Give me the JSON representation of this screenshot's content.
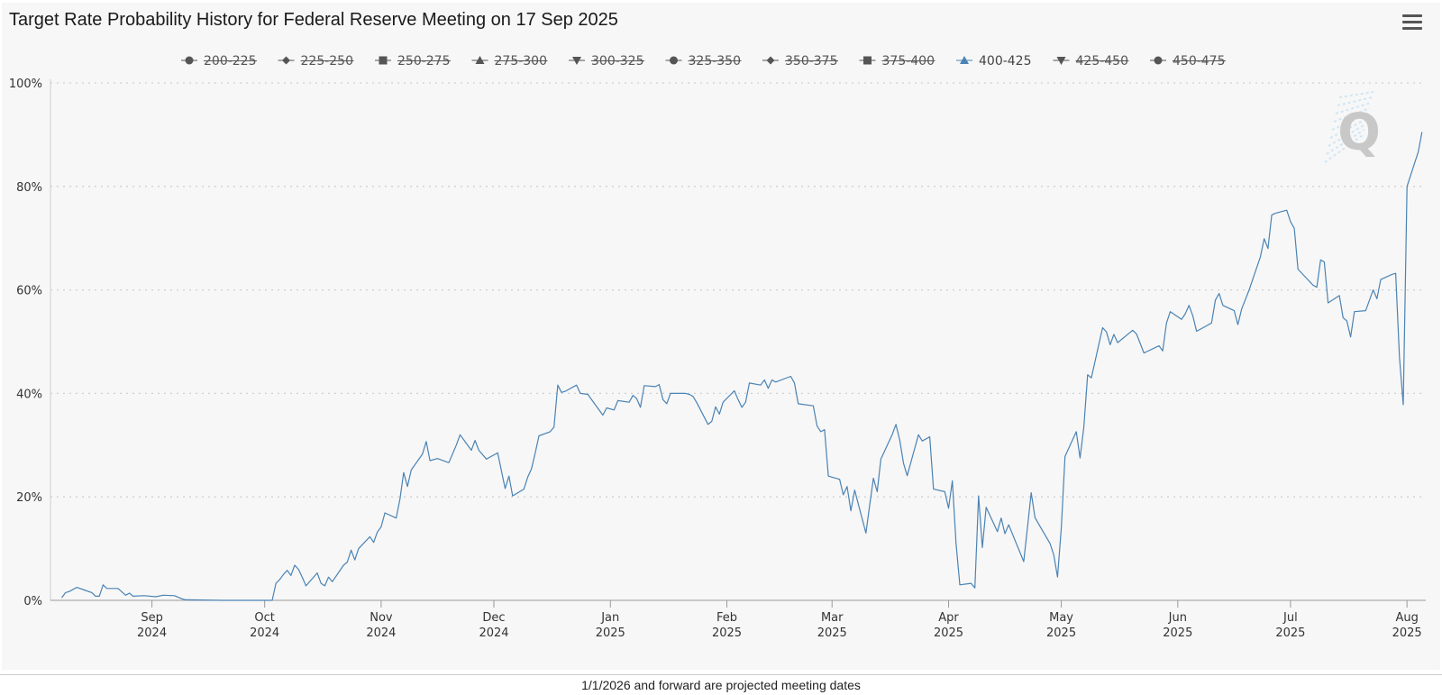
{
  "chart_data": {
    "type": "line",
    "title": "Target Rate Probability History for Federal Reserve Meeting on 17 Sep 2025",
    "legend": {
      "placement": "top-center",
      "items": [
        {
          "label": "200-225",
          "marker": "circle",
          "active": false
        },
        {
          "label": "225-250",
          "marker": "diamond",
          "active": false
        },
        {
          "label": "250-275",
          "marker": "square",
          "active": false
        },
        {
          "label": "275-300",
          "marker": "triangle",
          "active": false
        },
        {
          "label": "300-325",
          "marker": "triangle-down",
          "active": false
        },
        {
          "label": "325-350",
          "marker": "circle",
          "active": false
        },
        {
          "label": "350-375",
          "marker": "diamond",
          "active": false
        },
        {
          "label": "375-400",
          "marker": "square",
          "active": false
        },
        {
          "label": "400-425",
          "marker": "triangle",
          "active": true
        },
        {
          "label": "425-450",
          "marker": "triangle-down",
          "active": false
        },
        {
          "label": "450-475",
          "marker": "circle",
          "active": false
        }
      ]
    },
    "x_axis": {
      "type": "date",
      "range": [
        "2024-08-05",
        "2025-08-06"
      ],
      "ticks": [
        {
          "date": "2024-09-01",
          "month": "Sep",
          "year": "2024"
        },
        {
          "date": "2024-10-01",
          "month": "Oct",
          "year": "2024"
        },
        {
          "date": "2024-11-01",
          "month": "Nov",
          "year": "2024"
        },
        {
          "date": "2024-12-01",
          "month": "Dec",
          "year": "2024"
        },
        {
          "date": "2025-01-01",
          "month": "Jan",
          "year": "2025"
        },
        {
          "date": "2025-02-01",
          "month": "Feb",
          "year": "2025"
        },
        {
          "date": "2025-03-01",
          "month": "Mar",
          "year": "2025"
        },
        {
          "date": "2025-04-01",
          "month": "Apr",
          "year": "2025"
        },
        {
          "date": "2025-05-01",
          "month": "May",
          "year": "2025"
        },
        {
          "date": "2025-06-01",
          "month": "Jun",
          "year": "2025"
        },
        {
          "date": "2025-07-01",
          "month": "Jul",
          "year": "2025"
        },
        {
          "date": "2025-08-01",
          "month": "Aug",
          "year": "2025"
        }
      ]
    },
    "y_axis": {
      "ylim": [
        0,
        100
      ],
      "ticks": [
        0,
        20,
        40,
        60,
        80,
        100
      ],
      "tick_labels": [
        "0%",
        "20%",
        "40%",
        "60%",
        "80%",
        "100%"
      ],
      "grid": true
    },
    "series": [
      {
        "name": "400-425",
        "color": "#4a83b4",
        "points": [
          [
            "2024-08-08",
            0.5
          ],
          [
            "2024-08-09",
            1.5
          ],
          [
            "2024-08-10",
            1.7
          ],
          [
            "2024-08-12",
            2.5
          ],
          [
            "2024-08-14",
            2.0
          ],
          [
            "2024-08-16",
            1.5
          ],
          [
            "2024-08-17",
            0.8
          ],
          [
            "2024-08-18",
            0.8
          ],
          [
            "2024-08-19",
            3.0
          ],
          [
            "2024-08-20",
            2.3
          ],
          [
            "2024-08-23",
            2.3
          ],
          [
            "2024-08-25",
            1.0
          ],
          [
            "2024-08-26",
            1.4
          ],
          [
            "2024-08-27",
            0.8
          ],
          [
            "2024-08-30",
            0.9
          ],
          [
            "2024-09-02",
            0.7
          ],
          [
            "2024-09-04",
            1.0
          ],
          [
            "2024-09-07",
            0.9
          ],
          [
            "2024-09-09",
            0.3
          ],
          [
            "2024-09-10",
            0.1
          ],
          [
            "2024-09-20",
            0
          ],
          [
            "2024-10-03",
            0
          ],
          [
            "2024-10-04",
            3.3
          ],
          [
            "2024-10-05",
            4.0
          ],
          [
            "2024-10-06",
            5.0
          ],
          [
            "2024-10-07",
            5.8
          ],
          [
            "2024-10-08",
            4.8
          ],
          [
            "2024-10-09",
            6.8
          ],
          [
            "2024-10-10",
            6.0
          ],
          [
            "2024-10-11",
            4.5
          ],
          [
            "2024-10-12",
            2.8
          ],
          [
            "2024-10-15",
            5.3
          ],
          [
            "2024-10-16",
            3.3
          ],
          [
            "2024-10-17",
            2.8
          ],
          [
            "2024-10-18",
            4.5
          ],
          [
            "2024-10-19",
            3.6
          ],
          [
            "2024-10-22",
            6.8
          ],
          [
            "2024-10-23",
            7.4
          ],
          [
            "2024-10-24",
            9.7
          ],
          [
            "2024-10-25",
            7.8
          ],
          [
            "2024-10-26",
            10.0
          ],
          [
            "2024-10-29",
            12.3
          ],
          [
            "2024-10-30",
            11.2
          ],
          [
            "2024-10-31",
            13.2
          ],
          [
            "2024-11-01",
            14.2
          ],
          [
            "2024-11-02",
            16.9
          ],
          [
            "2024-11-05",
            15.9
          ],
          [
            "2024-11-06",
            19.6
          ],
          [
            "2024-11-07",
            24.7
          ],
          [
            "2024-11-08",
            22.0
          ],
          [
            "2024-11-09",
            25.2
          ],
          [
            "2024-11-12",
            28.3
          ],
          [
            "2024-11-13",
            30.7
          ],
          [
            "2024-11-14",
            27.0
          ],
          [
            "2024-11-16",
            27.4
          ],
          [
            "2024-11-19",
            26.6
          ],
          [
            "2024-11-21",
            30.0
          ],
          [
            "2024-11-22",
            32.0
          ],
          [
            "2024-11-25",
            29.0
          ],
          [
            "2024-11-26",
            30.9
          ],
          [
            "2024-11-27",
            29.0
          ],
          [
            "2024-11-29",
            27.3
          ],
          [
            "2024-12-02",
            28.5
          ],
          [
            "2024-12-04",
            21.6
          ],
          [
            "2024-12-05",
            24.0
          ],
          [
            "2024-12-06",
            20.2
          ],
          [
            "2024-12-09",
            21.5
          ],
          [
            "2024-12-10",
            23.8
          ],
          [
            "2024-12-11",
            25.4
          ],
          [
            "2024-12-12",
            28.5
          ],
          [
            "2024-12-13",
            31.8
          ],
          [
            "2024-12-16",
            32.6
          ],
          [
            "2024-12-17",
            33.5
          ],
          [
            "2024-12-18",
            41.6
          ],
          [
            "2024-12-19",
            40.2
          ],
          [
            "2024-12-20",
            40.4
          ],
          [
            "2024-12-23",
            41.6
          ],
          [
            "2024-12-24",
            40.0
          ],
          [
            "2024-12-26",
            39.8
          ],
          [
            "2024-12-30",
            35.8
          ],
          [
            "2024-12-31",
            37.2
          ],
          [
            "2025-01-02",
            36.8
          ],
          [
            "2025-01-03",
            38.6
          ],
          [
            "2025-01-06",
            38.3
          ],
          [
            "2025-01-07",
            39.6
          ],
          [
            "2025-01-08",
            39.0
          ],
          [
            "2025-01-09",
            37.3
          ],
          [
            "2025-01-10",
            41.5
          ],
          [
            "2025-01-13",
            41.3
          ],
          [
            "2025-01-14",
            41.7
          ],
          [
            "2025-01-15",
            38.8
          ],
          [
            "2025-01-16",
            38.0
          ],
          [
            "2025-01-17",
            40.0
          ],
          [
            "2025-01-21",
            40.0
          ],
          [
            "2025-01-22",
            39.8
          ],
          [
            "2025-01-23",
            39.4
          ],
          [
            "2025-01-24",
            38.2
          ],
          [
            "2025-01-27",
            34.0
          ],
          [
            "2025-01-28",
            34.6
          ],
          [
            "2025-01-29",
            37.4
          ],
          [
            "2025-01-30",
            36.0
          ],
          [
            "2025-01-31",
            38.3
          ],
          [
            "2025-02-03",
            40.5
          ],
          [
            "2025-02-04",
            38.8
          ],
          [
            "2025-02-05",
            37.3
          ],
          [
            "2025-02-06",
            38.3
          ],
          [
            "2025-02-07",
            42.0
          ],
          [
            "2025-02-10",
            41.6
          ],
          [
            "2025-02-11",
            42.6
          ],
          [
            "2025-02-12",
            41.0
          ],
          [
            "2025-02-13",
            42.6
          ],
          [
            "2025-02-14",
            42.2
          ],
          [
            "2025-02-18",
            43.3
          ],
          [
            "2025-02-19",
            42.0
          ],
          [
            "2025-02-20",
            38.0
          ],
          [
            "2025-02-24",
            37.6
          ],
          [
            "2025-02-25",
            33.7
          ],
          [
            "2025-02-26",
            32.6
          ],
          [
            "2025-02-27",
            33.0
          ],
          [
            "2025-02-28",
            24.0
          ],
          [
            "2025-03-03",
            23.4
          ],
          [
            "2025-03-04",
            20.4
          ],
          [
            "2025-03-05",
            22.0
          ],
          [
            "2025-03-06",
            17.3
          ],
          [
            "2025-03-07",
            21.3
          ],
          [
            "2025-03-10",
            13.0
          ],
          [
            "2025-03-11",
            18.3
          ],
          [
            "2025-03-12",
            23.6
          ],
          [
            "2025-03-13",
            21.0
          ],
          [
            "2025-03-14",
            27.3
          ],
          [
            "2025-03-17",
            32.0
          ],
          [
            "2025-03-18",
            34.0
          ],
          [
            "2025-03-19",
            31.0
          ],
          [
            "2025-03-20",
            26.5
          ],
          [
            "2025-03-21",
            24.1
          ],
          [
            "2025-03-24",
            32.0
          ],
          [
            "2025-03-25",
            30.8
          ],
          [
            "2025-03-27",
            31.6
          ],
          [
            "2025-03-28",
            21.5
          ],
          [
            "2025-03-31",
            21.0
          ],
          [
            "2025-04-01",
            17.8
          ],
          [
            "2025-04-02",
            23.1
          ],
          [
            "2025-04-03",
            11.0
          ],
          [
            "2025-04-04",
            3.0
          ],
          [
            "2025-04-07",
            3.3
          ],
          [
            "2025-04-08",
            2.4
          ],
          [
            "2025-04-09",
            20.2
          ],
          [
            "2025-04-10",
            10.2
          ],
          [
            "2025-04-11",
            18.0
          ],
          [
            "2025-04-14",
            13.3
          ],
          [
            "2025-04-15",
            15.9
          ],
          [
            "2025-04-16",
            12.9
          ],
          [
            "2025-04-17",
            14.6
          ],
          [
            "2025-04-21",
            7.5
          ],
          [
            "2025-04-22",
            14.0
          ],
          [
            "2025-04-23",
            20.8
          ],
          [
            "2025-04-24",
            16.0
          ],
          [
            "2025-04-25",
            14.7
          ],
          [
            "2025-04-28",
            11.0
          ],
          [
            "2025-04-29",
            8.8
          ],
          [
            "2025-04-30",
            4.5
          ],
          [
            "2025-05-01",
            14.0
          ],
          [
            "2025-05-02",
            27.8
          ],
          [
            "2025-05-05",
            32.6
          ],
          [
            "2025-05-06",
            27.5
          ],
          [
            "2025-05-07",
            33.5
          ],
          [
            "2025-05-08",
            43.6
          ],
          [
            "2025-05-09",
            43.0
          ],
          [
            "2025-05-12",
            52.7
          ],
          [
            "2025-05-13",
            51.9
          ],
          [
            "2025-05-14",
            49.4
          ],
          [
            "2025-05-15",
            51.4
          ],
          [
            "2025-05-16",
            49.8
          ],
          [
            "2025-05-19",
            51.6
          ],
          [
            "2025-05-20",
            52.2
          ],
          [
            "2025-05-21",
            51.5
          ],
          [
            "2025-05-23",
            47.8
          ],
          [
            "2025-05-27",
            49.2
          ],
          [
            "2025-05-28",
            48.2
          ],
          [
            "2025-05-29",
            53.6
          ],
          [
            "2025-05-30",
            55.8
          ],
          [
            "2025-06-02",
            54.3
          ],
          [
            "2025-06-03",
            55.4
          ],
          [
            "2025-06-04",
            57.0
          ],
          [
            "2025-06-05",
            55.0
          ],
          [
            "2025-06-06",
            52.0
          ],
          [
            "2025-06-09",
            53.2
          ],
          [
            "2025-06-10",
            53.6
          ],
          [
            "2025-06-11",
            58.0
          ],
          [
            "2025-06-12",
            59.3
          ],
          [
            "2025-06-13",
            57.0
          ],
          [
            "2025-06-16",
            56.0
          ],
          [
            "2025-06-17",
            53.3
          ],
          [
            "2025-06-18",
            56.3
          ],
          [
            "2025-06-20",
            60.0
          ],
          [
            "2025-06-23",
            66.4
          ],
          [
            "2025-06-24",
            69.9
          ],
          [
            "2025-06-25",
            68.0
          ],
          [
            "2025-06-26",
            74.5
          ],
          [
            "2025-06-27",
            74.8
          ],
          [
            "2025-06-30",
            75.4
          ],
          [
            "2025-07-01",
            73.2
          ],
          [
            "2025-07-02",
            71.9
          ],
          [
            "2025-07-03",
            64.0
          ],
          [
            "2025-07-07",
            60.9
          ],
          [
            "2025-07-08",
            60.5
          ],
          [
            "2025-07-09",
            65.8
          ],
          [
            "2025-07-10",
            65.4
          ],
          [
            "2025-07-11",
            57.5
          ],
          [
            "2025-07-14",
            58.9
          ],
          [
            "2025-07-15",
            54.6
          ],
          [
            "2025-07-16",
            54.0
          ],
          [
            "2025-07-17",
            50.9
          ],
          [
            "2025-07-18",
            55.8
          ],
          [
            "2025-07-21",
            56.0
          ],
          [
            "2025-07-22",
            58.0
          ],
          [
            "2025-07-23",
            60.0
          ],
          [
            "2025-07-24",
            58.3
          ],
          [
            "2025-07-25",
            62.0
          ],
          [
            "2025-07-28",
            63.0
          ],
          [
            "2025-07-29",
            63.2
          ],
          [
            "2025-07-30",
            47.0
          ],
          [
            "2025-07-31",
            37.8
          ],
          [
            "2025-08-01",
            80.0
          ],
          [
            "2025-08-04",
            86.7
          ],
          [
            "2025-08-05",
            90.5
          ]
        ]
      }
    ],
    "watermark": "Q"
  },
  "footer": {
    "note": "1/1/2026 and forward are projected meeting dates"
  },
  "toolbar": {
    "menu_icon": "hamburger-menu-icon"
  },
  "colors": {
    "active_series": "#4a83b4",
    "inactive_legend": "#555555",
    "grid": "#d0d0d0",
    "background": "#f7f7f7"
  }
}
